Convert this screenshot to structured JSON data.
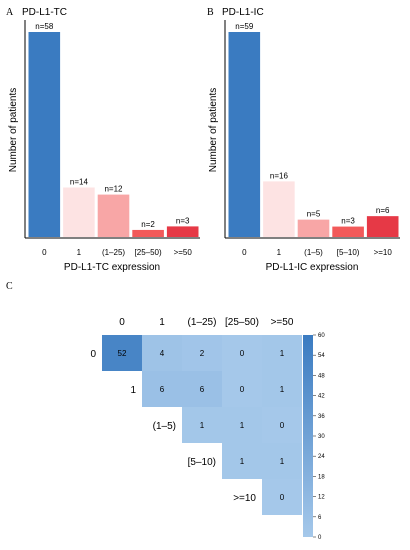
{
  "chart_data": [
    {
      "type": "bar",
      "panel_letter": "A",
      "title": "PD-L1-TC",
      "xlabel": "PD-L1-TC expression",
      "ylabel": "Number of patients",
      "categories": [
        "0",
        "1",
        "(1–25)",
        "[25–50)",
        ">=50"
      ],
      "values": [
        58,
        14,
        12,
        2,
        3
      ],
      "data_labels": [
        "n=58",
        "n=14",
        "n=12",
        "n=2",
        "n=3"
      ],
      "colors": [
        "#3a7bc1",
        "#fde3e3",
        "#f8a6a6",
        "#f25a5a",
        "#e63946"
      ],
      "ylim": [
        0,
        58
      ]
    },
    {
      "type": "bar",
      "panel_letter": "B",
      "title": "PD-L1-IC",
      "xlabel": "PD-L1-IC expression",
      "ylabel": "Number of patients",
      "categories": [
        "0",
        "1",
        "(1–5)",
        "[5–10)",
        ">=10"
      ],
      "values": [
        59,
        16,
        5,
        3,
        6
      ],
      "data_labels": [
        "n=59",
        "n=16",
        "n=5",
        "n=3",
        "n=6"
      ],
      "colors": [
        "#3a7bc1",
        "#fde3e3",
        "#f8a6a6",
        "#f25a5a",
        "#e63946"
      ],
      "ylim": [
        0,
        59
      ]
    },
    {
      "type": "heatmap",
      "panel_letter": "C",
      "columns": [
        "0",
        "1",
        "(1–25)",
        "[25–50)",
        ">=50"
      ],
      "rows": [
        "0",
        "1",
        "(1–5)",
        "[5–10)",
        ">=10"
      ],
      "cells": [
        [
          52,
          4,
          2,
          0,
          1
        ],
        [
          null,
          6,
          6,
          0,
          1
        ],
        [
          null,
          null,
          1,
          1,
          0
        ],
        [
          null,
          null,
          null,
          1,
          1
        ],
        [
          null,
          null,
          null,
          null,
          0
        ]
      ],
      "scale_min": 0,
      "scale_max": 60,
      "colorbar_ticks": [
        60,
        54,
        48,
        42,
        36,
        30,
        24,
        18,
        12,
        6,
        0
      ],
      "color_low": "#a5c8ea",
      "color_high": "#3a7bc1"
    }
  ]
}
